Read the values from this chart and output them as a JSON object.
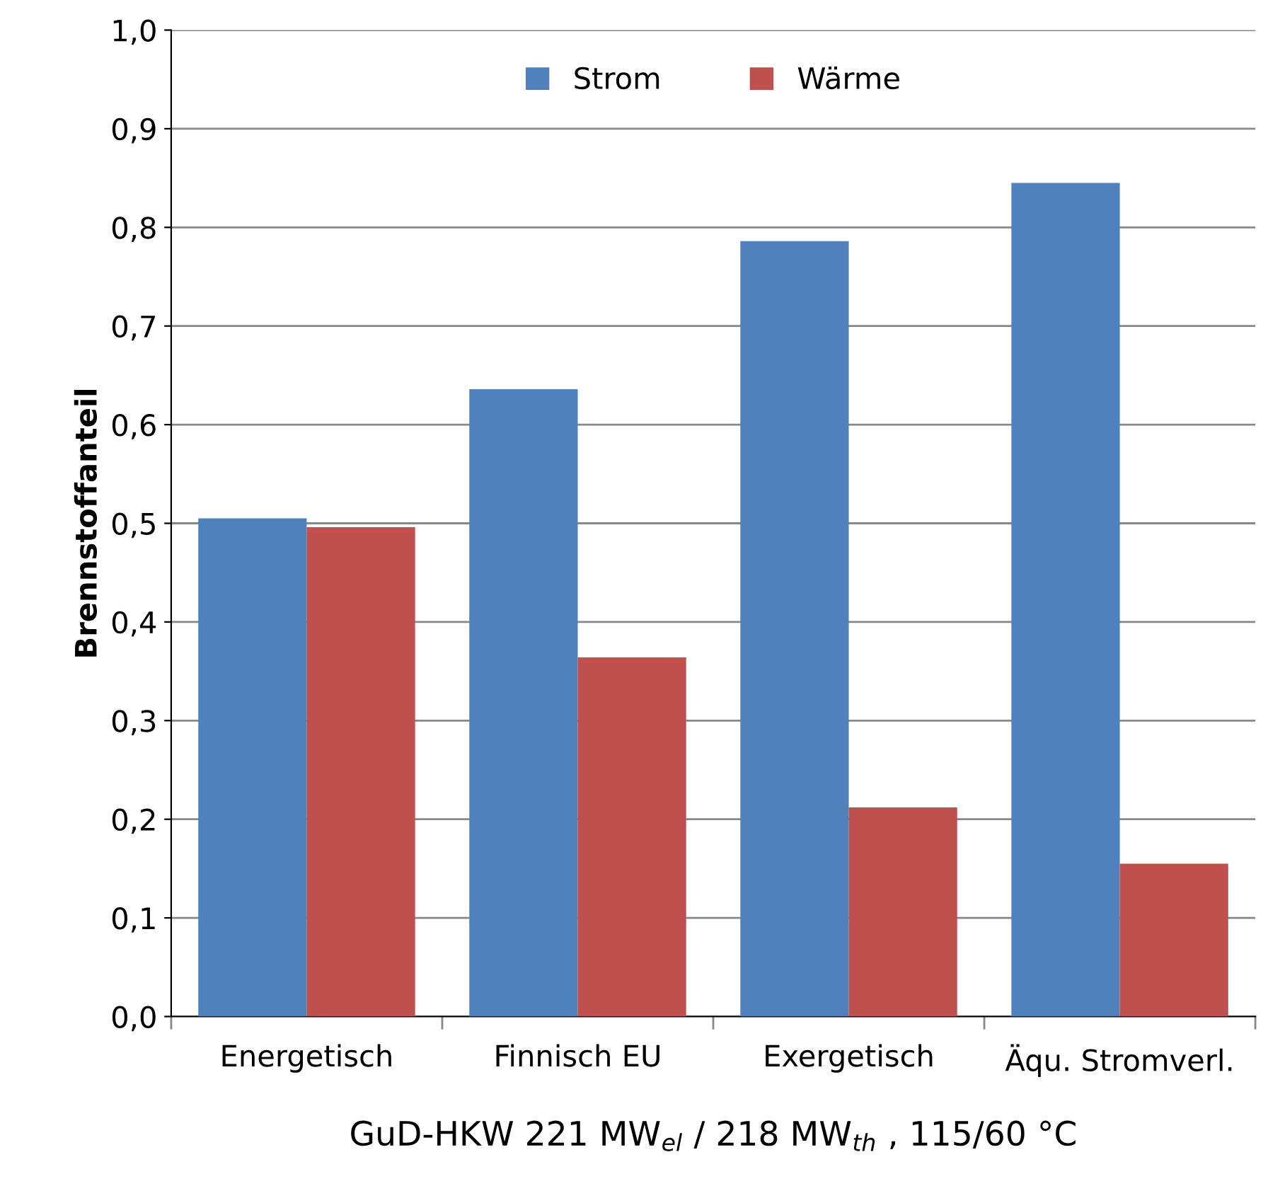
{
  "chart_data": {
    "type": "bar",
    "ylabel": "Brennstoffanteil",
    "xlabel": "GuD-HKW 221 MW$_{el}$ / 218 MW$_{th}$ , 115/60 °C",
    "categories": [
      "Energetisch",
      "Finnisch EU",
      "Exergetisch",
      "Äqu. Stromverl."
    ],
    "series": [
      {
        "name": "Strom",
        "color": "#4f81bd",
        "values": [
          0.505,
          0.636,
          0.786,
          0.845
        ]
      },
      {
        "name": "Wärme",
        "color": "#c0504d",
        "values": [
          0.496,
          0.364,
          0.212,
          0.155
        ]
      }
    ],
    "ylim": [
      0,
      1.0
    ],
    "yticks": [
      {
        "value": 0,
        "label": "0,0"
      },
      {
        "value": 0.1,
        "label": "0,1"
      },
      {
        "value": 0.2,
        "label": "0,2"
      },
      {
        "value": 0.3,
        "label": "0,3"
      },
      {
        "value": 0.4,
        "label": "0,4"
      },
      {
        "value": 0.5,
        "label": "0,5"
      },
      {
        "value": 0.6,
        "label": "0,6"
      },
      {
        "value": 0.7,
        "label": "0,7"
      },
      {
        "value": 0.8,
        "label": "0,8"
      },
      {
        "value": 0.9,
        "label": "0,9"
      },
      {
        "value": 1.0,
        "label": "1,0"
      }
    ],
    "grid": "y",
    "legend": "top"
  }
}
